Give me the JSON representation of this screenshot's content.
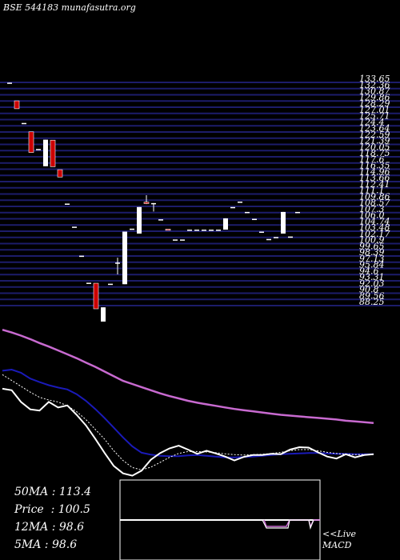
{
  "header": {
    "exchange": "BSE",
    "code": "544183",
    "site": "munafasutra.org"
  },
  "stats": [
    {
      "label": "50MA",
      "value": "113.4"
    },
    {
      "label": "Price",
      "value": "100.5"
    },
    {
      "label": "12MA",
      "value": "98.6"
    },
    {
      "label": "5MA",
      "value": "98.6"
    }
  ],
  "live_label": "<<Live",
  "macd_label": "MACD",
  "colors": {
    "background": "#000000",
    "gridline": "#1c1c6a",
    "up_candle": "#ffffff",
    "down_candle": "#cc0000",
    "ma_long": "#c86ad0",
    "ma_mid": "#1a1ab8",
    "ma_short": "#ffffff",
    "macd_panel_border": "#ffffff",
    "macd_signal": "#c86ad0"
  },
  "chart_data": {
    "type": "candlestick",
    "y_axis_labels": [
      "133.65",
      "132.36",
      "130.87",
      "129.86",
      "128.29",
      "127.01",
      "125.71",
      "124.4",
      "123.64",
      "122.59",
      "121.39",
      "120.05",
      "118.75",
      "117.6",
      "116.35",
      "114.96",
      "113.66",
      "112.41",
      "111.1",
      "109.86",
      "108.57",
      "107.3",
      "106.0",
      "104.74",
      "103.48",
      "102.17",
      "100.9",
      "99.65",
      "98.39",
      "97.13",
      "95.84",
      "94.6",
      "93.31",
      "92.03",
      "90.8",
      "89.56",
      "88.25"
    ],
    "candles": [
      {
        "o": 133.4,
        "h": 133.6,
        "l": 133.4,
        "c": 133.6
      },
      {
        "o": 129.9,
        "h": 129.9,
        "l": 128.3,
        "c": 128.3
      },
      {
        "o": 125.4,
        "h": 125.4,
        "l": 125.4,
        "c": 125.4
      },
      {
        "o": 123.6,
        "h": 123.6,
        "l": 119.4,
        "c": 119.4
      },
      {
        "o": 120.1,
        "h": 120.1,
        "l": 120.1,
        "c": 120.1
      },
      {
        "o": 116.6,
        "h": 122.0,
        "l": 116.6,
        "c": 122.0
      },
      {
        "o": 121.9,
        "h": 121.9,
        "l": 116.5,
        "c": 116.5
      },
      {
        "o": 115.9,
        "h": 115.9,
        "l": 114.4,
        "c": 114.4
      },
      {
        "o": 109.0,
        "h": 109.0,
        "l": 109.0,
        "c": 109.0
      },
      {
        "o": 104.3,
        "h": 104.3,
        "l": 104.3,
        "c": 104.3
      },
      {
        "o": 98.4,
        "h": 98.4,
        "l": 98.4,
        "c": 98.4
      },
      {
        "o": 92.9,
        "h": 92.9,
        "l": 92.9,
        "c": 92.9
      },
      {
        "o": 92.8,
        "h": 92.8,
        "l": 87.6,
        "c": 87.6
      },
      {
        "o": 85.0,
        "h": 87.9,
        "l": 85.0,
        "c": 87.9
      },
      {
        "o": 92.7,
        "h": 92.7,
        "l": 92.7,
        "c": 92.7
      },
      {
        "o": 97.0,
        "h": 98.0,
        "l": 94.6,
        "c": 97.0
      },
      {
        "o": 92.6,
        "h": 103.3,
        "l": 92.6,
        "c": 103.3
      },
      {
        "o": 103.9,
        "h": 103.9,
        "l": 103.9,
        "c": 103.9
      },
      {
        "o": 102.9,
        "h": 108.3,
        "l": 102.9,
        "c": 108.3
      },
      {
        "o": 109.3,
        "h": 110.7,
        "l": 108.9,
        "c": 109.0
      },
      {
        "o": 109.1,
        "h": 109.1,
        "l": 107.4,
        "c": 109.1
      },
      {
        "o": 105.8,
        "h": 105.8,
        "l": 105.8,
        "c": 105.8
      },
      {
        "o": 103.8,
        "h": 103.8,
        "l": 103.6,
        "c": 103.6
      },
      {
        "o": 101.7,
        "h": 101.7,
        "l": 101.7,
        "c": 101.7
      },
      {
        "o": 101.7,
        "h": 101.7,
        "l": 101.7,
        "c": 101.7
      },
      {
        "o": 103.7,
        "h": 103.7,
        "l": 103.7,
        "c": 103.7
      },
      {
        "o": 103.7,
        "h": 103.7,
        "l": 103.7,
        "c": 103.7
      },
      {
        "o": 103.7,
        "h": 103.7,
        "l": 103.7,
        "c": 103.7
      },
      {
        "o": 103.7,
        "h": 103.7,
        "l": 103.7,
        "c": 103.7
      },
      {
        "o": 103.7,
        "h": 103.7,
        "l": 103.7,
        "c": 103.7
      },
      {
        "o": 103.7,
        "h": 106.0,
        "l": 103.7,
        "c": 106.0
      },
      {
        "o": 108.3,
        "h": 108.3,
        "l": 108.3,
        "c": 108.3
      },
      {
        "o": 109.4,
        "h": 109.4,
        "l": 109.4,
        "c": 109.4
      },
      {
        "o": 107.3,
        "h": 107.3,
        "l": 107.3,
        "c": 107.3
      },
      {
        "o": 105.9,
        "h": 105.9,
        "l": 105.9,
        "c": 105.9
      },
      {
        "o": 103.3,
        "h": 103.3,
        "l": 103.3,
        "c": 103.3
      },
      {
        "o": 101.8,
        "h": 101.8,
        "l": 101.8,
        "c": 101.8
      },
      {
        "o": 102.2,
        "h": 102.2,
        "l": 102.2,
        "c": 102.2
      },
      {
        "o": 102.9,
        "h": 107.3,
        "l": 102.9,
        "c": 107.3
      },
      {
        "o": 102.3,
        "h": 102.3,
        "l": 102.3,
        "c": 102.3
      },
      {
        "o": 107.3,
        "h": 107.3,
        "l": 107.3,
        "c": 107.3
      }
    ],
    "ma_long": [
      135.5,
      134.8,
      134.0,
      133.1,
      132.1,
      131.2,
      130.2,
      129.2,
      128.2,
      127.1,
      126.0,
      124.8,
      123.6,
      122.4,
      121.6,
      120.8,
      120.0,
      119.2,
      118.5,
      117.9,
      117.3,
      116.8,
      116.4,
      116.0,
      115.6,
      115.2,
      114.9,
      114.6,
      114.3,
      114.0,
      113.7,
      113.5,
      113.3,
      113.1,
      112.9,
      112.7,
      112.5,
      112.2,
      112.0,
      111.8,
      111.6
    ],
    "ma_mid": [
      125.0,
      125.3,
      124.5,
      123.0,
      122.1,
      121.3,
      120.7,
      120.2,
      119.0,
      117.3,
      115.2,
      112.9,
      110.4,
      107.9,
      105.6,
      104.0,
      103.5,
      103.2,
      103.1,
      103.1,
      103.3,
      103.4,
      103.2,
      103.0,
      102.8,
      102.8,
      102.9,
      103.0,
      103.2,
      103.4,
      103.6,
      103.7,
      103.8,
      103.9,
      103.9,
      103.8,
      103.7,
      103.7,
      103.6,
      103.6,
      103.6
    ],
    "ma_short": [
      120.4,
      120.0,
      117.0,
      115.1,
      114.8,
      117.0,
      115.6,
      116.1,
      113.7,
      111.0,
      107.6,
      104.0,
      100.6,
      98.7,
      98.1,
      99.4,
      102.2,
      103.9,
      105.1,
      105.8,
      104.8,
      103.7,
      104.5,
      103.8,
      103.0,
      102.0,
      102.9,
      103.4,
      103.4,
      103.7,
      103.6,
      104.8,
      105.4,
      105.3,
      104.1,
      103.0,
      102.5,
      103.6,
      102.8,
      103.4,
      103.6
    ],
    "ma_short_dotted": [
      124.0,
      122.5,
      121.0,
      119.5,
      118.2,
      117.5,
      117.0,
      116.0,
      114.5,
      112.5,
      110.0,
      107.5,
      104.5,
      102.0,
      100.2,
      99.6,
      100.3,
      101.5,
      102.8,
      103.8,
      104.3,
      104.3,
      104.2,
      104.0,
      103.7,
      103.5,
      103.4,
      103.5,
      103.6,
      103.8,
      104.1,
      104.5,
      104.8,
      104.8,
      104.5,
      104.1,
      103.8,
      103.6,
      103.5,
      103.5,
      103.5
    ]
  }
}
